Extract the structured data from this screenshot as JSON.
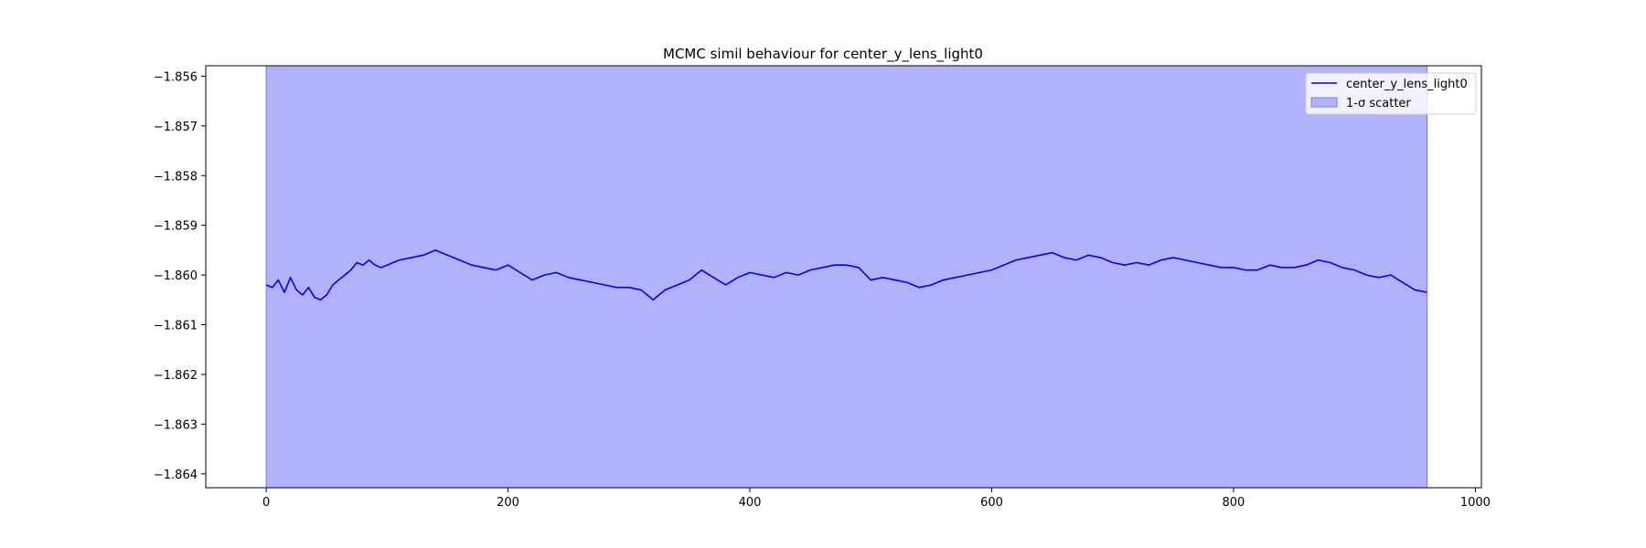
{
  "chart_data": {
    "type": "line",
    "title": "MCMC simil behaviour for center_y_lens_light0",
    "xlabel": "",
    "ylabel": "",
    "xlim": [
      -50,
      1005
    ],
    "ylim": [
      -1.86428,
      -1.85579
    ],
    "xticks": [
      0,
      200,
      400,
      600,
      800,
      1000
    ],
    "yticks": [
      -1.856,
      -1.857,
      -1.858,
      -1.859,
      -1.86,
      -1.861,
      -1.862,
      -1.863,
      -1.864
    ],
    "grid": false,
    "legend_position": "top-right",
    "series_color": "#0000ff",
    "band_color": "#b2b2fc",
    "band": {
      "x_start": 0,
      "x_end": 960,
      "lower": -1.865,
      "upper": -1.855,
      "label": "1-σ scatter"
    },
    "series": [
      {
        "name": "center_y_lens_light0",
        "x": [
          0,
          5,
          10,
          15,
          20,
          25,
          30,
          35,
          40,
          45,
          50,
          55,
          60,
          65,
          70,
          75,
          80,
          85,
          90,
          95,
          100,
          110,
          120,
          130,
          140,
          150,
          160,
          170,
          180,
          190,
          200,
          210,
          220,
          230,
          240,
          250,
          260,
          270,
          280,
          290,
          300,
          310,
          320,
          330,
          340,
          350,
          360,
          370,
          380,
          390,
          400,
          410,
          420,
          430,
          440,
          450,
          460,
          470,
          480,
          490,
          500,
          510,
          520,
          530,
          540,
          550,
          560,
          570,
          580,
          590,
          600,
          610,
          620,
          630,
          640,
          650,
          660,
          670,
          680,
          690,
          700,
          710,
          720,
          730,
          740,
          750,
          760,
          770,
          780,
          790,
          800,
          810,
          820,
          830,
          840,
          850,
          860,
          870,
          880,
          890,
          900,
          910,
          920,
          930,
          940,
          950,
          960
        ],
        "values": [
          -1.8602,
          -1.86025,
          -1.8601,
          -1.86035,
          -1.86005,
          -1.8603,
          -1.8604,
          -1.86025,
          -1.86045,
          -1.8605,
          -1.8604,
          -1.8602,
          -1.8601,
          -1.86,
          -1.8599,
          -1.85975,
          -1.8598,
          -1.8597,
          -1.8598,
          -1.85985,
          -1.8598,
          -1.8597,
          -1.85965,
          -1.8596,
          -1.8595,
          -1.8596,
          -1.8597,
          -1.8598,
          -1.85985,
          -1.8599,
          -1.8598,
          -1.85995,
          -1.8601,
          -1.86,
          -1.85995,
          -1.86005,
          -1.8601,
          -1.86015,
          -1.8602,
          -1.86025,
          -1.86025,
          -1.8603,
          -1.8605,
          -1.8603,
          -1.8602,
          -1.8601,
          -1.8599,
          -1.86005,
          -1.8602,
          -1.86005,
          -1.85995,
          -1.86,
          -1.86005,
          -1.85995,
          -1.86,
          -1.8599,
          -1.85985,
          -1.8598,
          -1.8598,
          -1.85985,
          -1.8601,
          -1.86005,
          -1.8601,
          -1.86015,
          -1.86025,
          -1.8602,
          -1.8601,
          -1.86005,
          -1.86,
          -1.85995,
          -1.8599,
          -1.8598,
          -1.8597,
          -1.85965,
          -1.8596,
          -1.85955,
          -1.85965,
          -1.8597,
          -1.8596,
          -1.85965,
          -1.85975,
          -1.8598,
          -1.85975,
          -1.8598,
          -1.8597,
          -1.85965,
          -1.8597,
          -1.85975,
          -1.8598,
          -1.85985,
          -1.85985,
          -1.8599,
          -1.8599,
          -1.8598,
          -1.85985,
          -1.85985,
          -1.8598,
          -1.8597,
          -1.85975,
          -1.85985,
          -1.8599,
          -1.86,
          -1.86005,
          -1.86,
          -1.86015,
          -1.8603,
          -1.86035
        ]
      }
    ],
    "legend": [
      {
        "label": "center_y_lens_light0",
        "kind": "line"
      },
      {
        "label": "1-σ scatter",
        "kind": "patch"
      }
    ]
  }
}
